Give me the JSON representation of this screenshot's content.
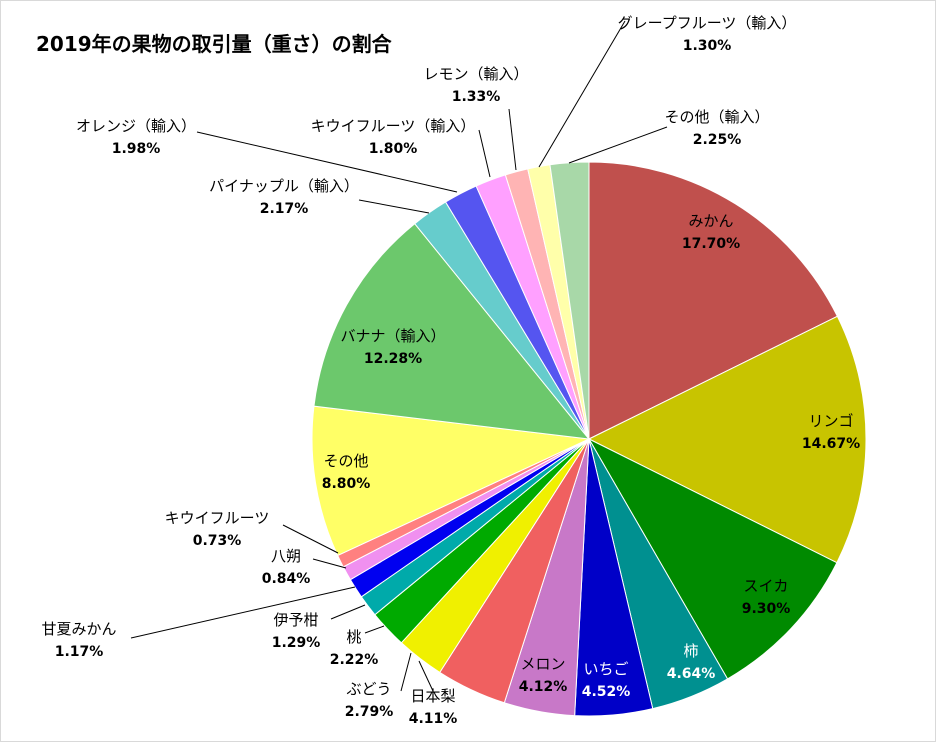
{
  "chart_data": {
    "type": "pie",
    "title": "2019年の果物の取引量（重さ）の割合",
    "start_angle_deg": 0,
    "direction": "clockwise",
    "slices": [
      {
        "label": "みかん",
        "value": 17.7,
        "display": "17.70%",
        "color": "#C0504D"
      },
      {
        "label": "リンゴ",
        "value": 14.67,
        "display": "14.67%",
        "color": "#C8C400"
      },
      {
        "label": "スイカ",
        "value": 9.3,
        "display": "9.30%",
        "color": "#008A00"
      },
      {
        "label": "柿",
        "value": 4.64,
        "display": "4.64%",
        "color": "#009090"
      },
      {
        "label": "いちご",
        "value": 4.52,
        "display": "4.52%",
        "color": "#0000C8"
      },
      {
        "label": "メロン",
        "value": 4.12,
        "display": "4.12%",
        "color": "#C878C8"
      },
      {
        "label": "日本梨",
        "value": 4.11,
        "display": "4.11%",
        "color": "#F06060"
      },
      {
        "label": "ぶどう",
        "value": 2.79,
        "display": "2.79%",
        "color": "#F0F000"
      },
      {
        "label": "桃",
        "value": 2.22,
        "display": "2.22%",
        "color": "#00AA00"
      },
      {
        "label": "伊予柑",
        "value": 1.29,
        "display": "1.29%",
        "color": "#00AAAA"
      },
      {
        "label": "甘夏みかん",
        "value": 1.17,
        "display": "1.17%",
        "color": "#0000F0"
      },
      {
        "label": "八朔",
        "value": 0.84,
        "display": "0.84%",
        "color": "#F090F0"
      },
      {
        "label": "キウイフルーツ",
        "value": 0.73,
        "display": "0.73%",
        "color": "#FF8080"
      },
      {
        "label": "その他",
        "value": 8.8,
        "display": "8.80%",
        "color": "#FFFF66"
      },
      {
        "label": "バナナ（輸入）",
        "value": 12.28,
        "display": "12.28%",
        "color": "#6CC86C"
      },
      {
        "label": "パイナップル（輸入）",
        "value": 2.17,
        "display": "2.17%",
        "color": "#66CCCC"
      },
      {
        "label": "オレンジ（輸入）",
        "value": 1.98,
        "display": "1.98%",
        "color": "#5555F0"
      },
      {
        "label": "キウイフルーツ（輸入）",
        "value": 1.8,
        "display": "1.80%",
        "color": "#FFA0FF"
      },
      {
        "label": "レモン（輸入）",
        "value": 1.33,
        "display": "1.33%",
        "color": "#FFB4B4"
      },
      {
        "label": "グレープフルーツ（輸入）",
        "value": 1.3,
        "display": "1.30%",
        "color": "#FFFFAA"
      },
      {
        "label": "その他（輸入）",
        "value": 2.25,
        "display": "2.25%",
        "color": "#A8D8A8"
      }
    ]
  }
}
